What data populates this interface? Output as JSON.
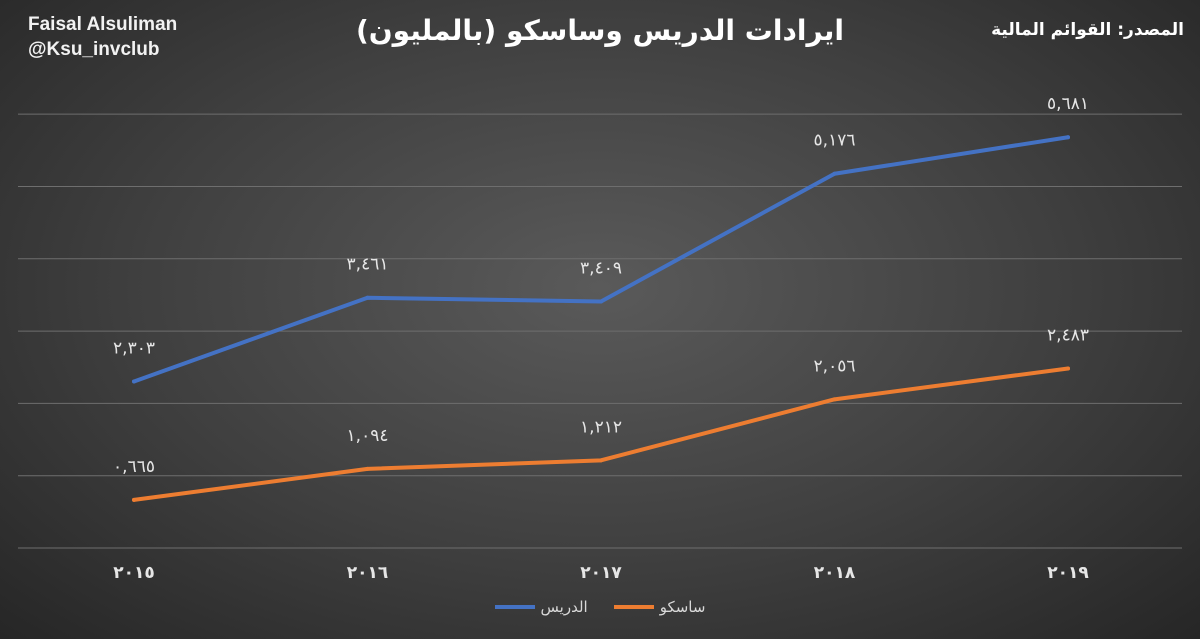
{
  "header": {
    "author_name": "Faisal Alsuliman",
    "author_handle": "@Ksu_invclub",
    "source": "المصدر: القوائم المالية"
  },
  "chart_data": {
    "type": "line",
    "title": "ايرادات الدريس وساسكو (بالمليون)",
    "xlabel": "",
    "ylabel": "",
    "ylim": [
      0,
      6500
    ],
    "grid": true,
    "legend_position": "bottom",
    "categories": [
      "٢٠١٥",
      "٢٠١٦",
      "٢٠١٧",
      "٢٠١٨",
      "٢٠١٩"
    ],
    "series": [
      {
        "name": "الدريس",
        "color": "#4472c4",
        "values": [
          2303,
          3461,
          3409,
          5176,
          5681
        ],
        "labels": [
          "٢,٣٠٣",
          "٣,٤٦١",
          "٣,٤٠٩",
          "٥,١٧٦",
          "٥,٦٨١"
        ]
      },
      {
        "name": "ساسكو",
        "color": "#ed7d31",
        "values": [
          665,
          1094,
          1212,
          2056,
          2483
        ],
        "labels": [
          "٠,٦٦٥",
          "١,٠٩٤",
          "١,٢١٢",
          "٢,٠٥٦",
          "٢,٤٨٣"
        ]
      }
    ]
  }
}
